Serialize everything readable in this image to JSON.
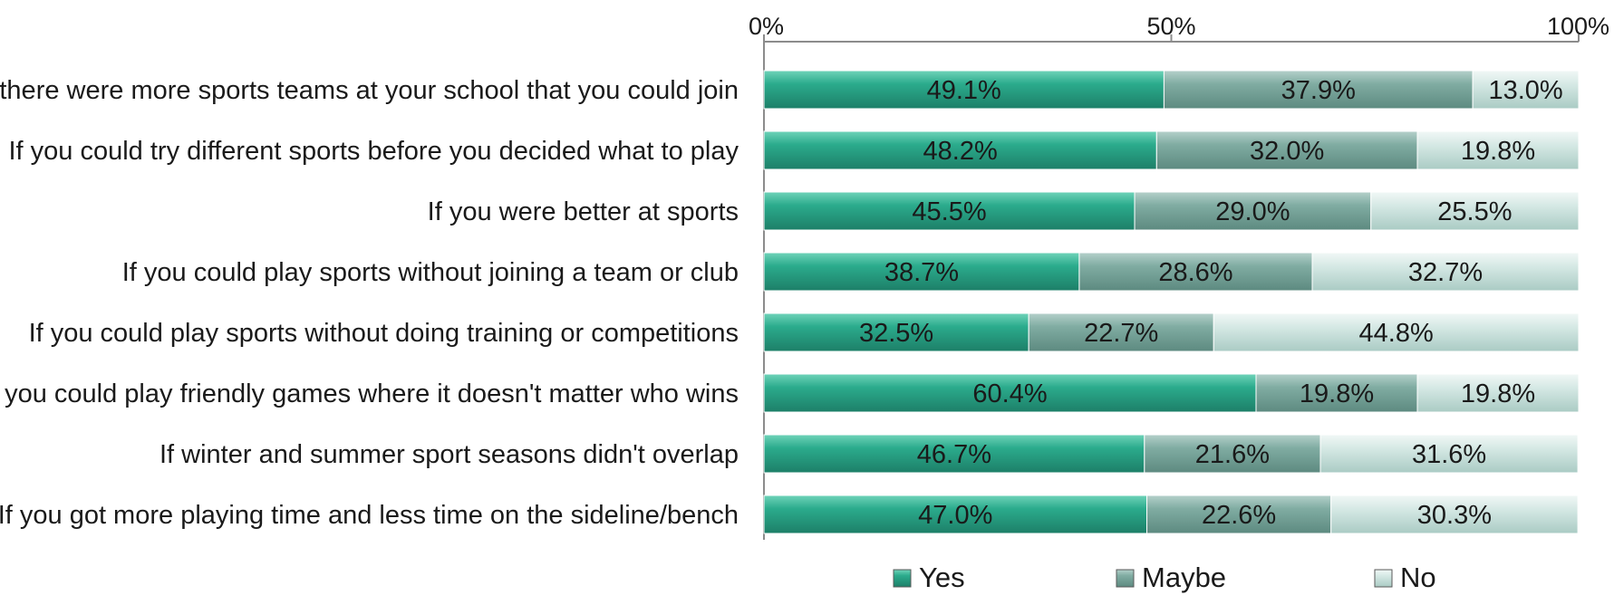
{
  "chart_data": {
    "type": "bar",
    "orientation": "horizontal",
    "stacked": true,
    "percent_stacked": true,
    "title": "",
    "xlabel": "",
    "ylabel": "",
    "xlim": [
      0,
      100
    ],
    "x_ticks": [
      "0%",
      "50%",
      "100%"
    ],
    "x_axis_position": "top",
    "grid": false,
    "legend_position": "bottom",
    "categories": [
      "If there were more sports teams at your school that you could join",
      "If you could try different sports before you decided what to play",
      "If you were better at sports",
      "If you could play sports without joining a team or club",
      "If you could play sports without doing training or competitions",
      "If you could play friendly games where it doesn't matter who wins",
      "If winter and summer sport seasons didn't overlap",
      "If you got more playing time and less time on the sideline/bench"
    ],
    "series": [
      {
        "name": "Yes",
        "color": "#2bab8c",
        "values": [
          49.1,
          48.2,
          45.5,
          38.7,
          32.5,
          60.4,
          46.7,
          47.0
        ],
        "labels": [
          "49.1%",
          "48.2%",
          "45.5%",
          "38.7%",
          "32.5%",
          "60.4%",
          "46.7%",
          "47.0%"
        ]
      },
      {
        "name": "Maybe",
        "color": "#80aca2",
        "values": [
          37.9,
          32.0,
          29.0,
          28.6,
          22.7,
          19.8,
          21.6,
          22.6
        ],
        "labels": [
          "37.9%",
          "32.0%",
          "29.0%",
          "28.6%",
          "22.7%",
          "19.8%",
          "21.6%",
          "22.6%"
        ]
      },
      {
        "name": "No",
        "color": "#cde3de",
        "values": [
          13.0,
          19.8,
          25.5,
          32.7,
          44.8,
          19.8,
          31.6,
          30.3
        ],
        "labels": [
          "13.0%",
          "19.8%",
          "25.5%",
          "32.7%",
          "44.8%",
          "19.8%",
          "31.6%",
          "30.3%"
        ]
      }
    ]
  }
}
